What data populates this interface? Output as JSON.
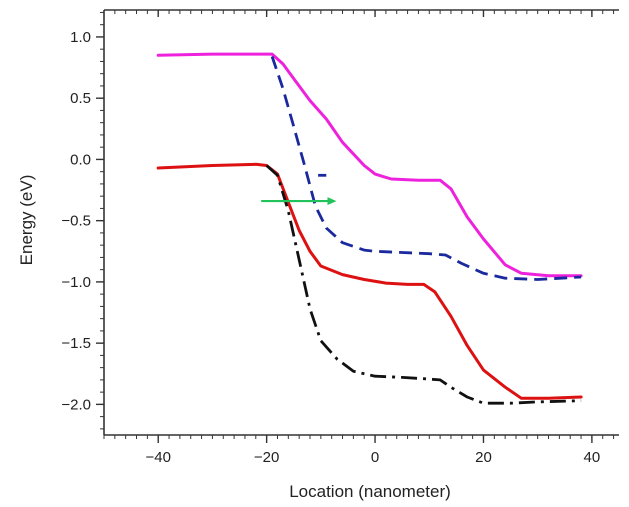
{
  "chart_data": {
    "type": "line",
    "title": "",
    "xlabel": "Location (nanometer)",
    "ylabel": "Energy (eV)",
    "xlim": [
      -50,
      45
    ],
    "ylim": [
      -2.25,
      1.22
    ],
    "x_ticks": [
      -40,
      -20,
      0,
      20,
      40
    ],
    "x_tick_labels": [
      "−40",
      "−20",
      "0",
      "20",
      "40"
    ],
    "y_ticks": [
      1.0,
      0.5,
      0.0,
      -0.5,
      -1.0,
      -1.5,
      -2.0
    ],
    "y_tick_labels": [
      "1.0",
      "0.5",
      "0.0",
      "−0.5",
      "−1.0",
      "−1.5",
      "−2.0"
    ],
    "x_minor_step": 2,
    "y_minor_step": 0.1,
    "grid": false,
    "legend": "none",
    "series": [
      {
        "color": "#ee22dd",
        "style": "solid",
        "points": [
          [
            -40,
            0.85
          ],
          [
            -30,
            0.86
          ],
          [
            -19,
            0.86
          ],
          [
            -17,
            0.78
          ],
          [
            -15,
            0.66
          ],
          [
            -12,
            0.48
          ],
          [
            -9,
            0.33
          ],
          [
            -6,
            0.14
          ],
          [
            -2,
            -0.05
          ],
          [
            0,
            -0.12
          ],
          [
            3,
            -0.16
          ],
          [
            8,
            -0.17
          ],
          [
            12,
            -0.17
          ],
          [
            14,
            -0.24
          ],
          [
            17,
            -0.47
          ],
          [
            20,
            -0.65
          ],
          [
            24,
            -0.86
          ],
          [
            27,
            -0.93
          ],
          [
            32,
            -0.95
          ],
          [
            38,
            -0.95
          ]
        ]
      },
      {
        "color": "#1a2a9e",
        "style": "dashed",
        "points": [
          [
            -19,
            0.84
          ],
          [
            -17,
            0.58
          ],
          [
            -15,
            0.27
          ],
          [
            -13,
            -0.05
          ],
          [
            -11,
            -0.38
          ],
          [
            -9,
            -0.56
          ],
          [
            -6,
            -0.68
          ],
          [
            -2,
            -0.74
          ],
          [
            0,
            -0.75
          ],
          [
            5,
            -0.76
          ],
          [
            10,
            -0.77
          ],
          [
            13,
            -0.78
          ],
          [
            16,
            -0.85
          ],
          [
            20,
            -0.93
          ],
          [
            24,
            -0.97
          ],
          [
            30,
            -0.98
          ],
          [
            38,
            -0.96
          ]
        ]
      },
      {
        "color": "#dd1111",
        "style": "solid",
        "points": [
          [
            -40,
            -0.07
          ],
          [
            -30,
            -0.05
          ],
          [
            -22,
            -0.04
          ],
          [
            -20,
            -0.05
          ],
          [
            -18,
            -0.12
          ],
          [
            -16,
            -0.35
          ],
          [
            -14,
            -0.58
          ],
          [
            -12,
            -0.75
          ],
          [
            -10,
            -0.87
          ],
          [
            -6,
            -0.94
          ],
          [
            -2,
            -0.98
          ],
          [
            2,
            -1.01
          ],
          [
            6,
            -1.02
          ],
          [
            9,
            -1.02
          ],
          [
            11,
            -1.08
          ],
          [
            14,
            -1.28
          ],
          [
            17,
            -1.52
          ],
          [
            20,
            -1.72
          ],
          [
            24,
            -1.86
          ],
          [
            27,
            -1.95
          ],
          [
            32,
            -1.95
          ],
          [
            38,
            -1.94
          ]
        ]
      },
      {
        "color": "#111111",
        "style": "dashdot",
        "points": [
          [
            -20,
            -0.05
          ],
          [
            -18,
            -0.13
          ],
          [
            -16,
            -0.42
          ],
          [
            -14,
            -0.82
          ],
          [
            -12,
            -1.22
          ],
          [
            -10,
            -1.48
          ],
          [
            -7,
            -1.63
          ],
          [
            -4,
            -1.73
          ],
          [
            0,
            -1.77
          ],
          [
            5,
            -1.78
          ],
          [
            9,
            -1.79
          ],
          [
            12,
            -1.8
          ],
          [
            14,
            -1.86
          ],
          [
            17,
            -1.94
          ],
          [
            20,
            -1.99
          ],
          [
            25,
            -1.99
          ],
          [
            30,
            -1.98
          ],
          [
            38,
            -1.97
          ]
        ]
      },
      {
        "color": "#1a2a9e",
        "style": "dashed",
        "points": [
          [
            -10.5,
            -0.13
          ],
          [
            -9,
            -0.13
          ]
        ]
      }
    ],
    "annotations": [
      {
        "type": "arrow",
        "color": "#22c25a",
        "from": [
          -21,
          -0.34
        ],
        "to": [
          -7.5,
          -0.34
        ]
      }
    ]
  }
}
